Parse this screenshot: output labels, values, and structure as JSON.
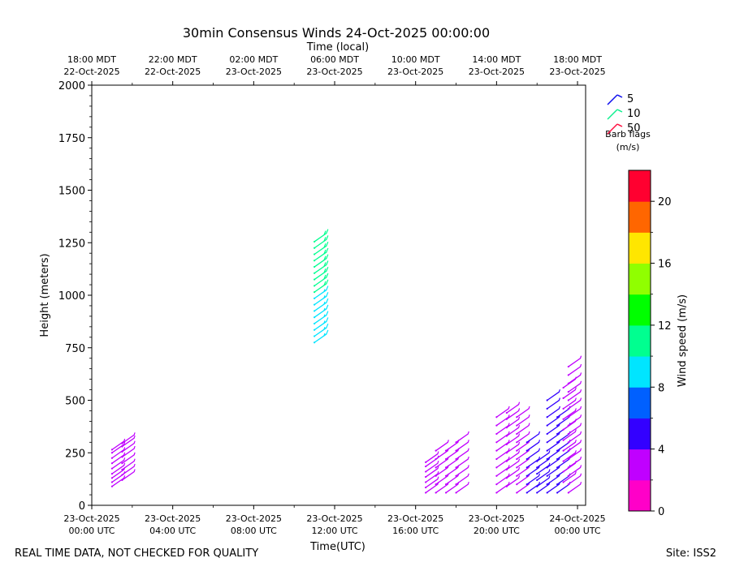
{
  "title": "30min Consensus Winds 24-Oct-2025 00:00:00",
  "footer_left": "REAL TIME DATA, NOT CHECKED FOR QUALITY",
  "footer_right": "Site: ISS2",
  "chart_data": {
    "type": "wind-barb",
    "xlabel": "Time(UTC)",
    "x2label": "Time (local)",
    "ylabel": "Height (meters)",
    "ylim": [
      0,
      2000
    ],
    "yticks": [
      0,
      250,
      500,
      750,
      1000,
      1250,
      1500,
      1750,
      2000
    ],
    "xlim_hours_utc": [
      0,
      24.4
    ],
    "xticks_utc": [
      {
        "h": 0,
        "l1": "23-Oct-2025",
        "l2": "00:00 UTC"
      },
      {
        "h": 4,
        "l1": "23-Oct-2025",
        "l2": "04:00 UTC"
      },
      {
        "h": 8,
        "l1": "23-Oct-2025",
        "l2": "08:00 UTC"
      },
      {
        "h": 12,
        "l1": "23-Oct-2025",
        "l2": "12:00 UTC"
      },
      {
        "h": 16,
        "l1": "23-Oct-2025",
        "l2": "16:00 UTC"
      },
      {
        "h": 20,
        "l1": "23-Oct-2025",
        "l2": "20:00 UTC"
      },
      {
        "h": 24,
        "l1": "24-Oct-2025",
        "l2": "00:00 UTC"
      }
    ],
    "xticks_local": [
      {
        "h": 0,
        "l1": "18:00 MDT",
        "l2": "22-Oct-2025"
      },
      {
        "h": 4,
        "l1": "22:00 MDT",
        "l2": "22-Oct-2025"
      },
      {
        "h": 8,
        "l1": "02:00 MDT",
        "l2": "23-Oct-2025"
      },
      {
        "h": 12,
        "l1": "06:00 MDT",
        "l2": "23-Oct-2025"
      },
      {
        "h": 16,
        "l1": "10:00 MDT",
        "l2": "23-Oct-2025"
      },
      {
        "h": 20,
        "l1": "14:00 MDT",
        "l2": "23-Oct-2025"
      },
      {
        "h": 24,
        "l1": "18:00 MDT",
        "l2": "23-Oct-2025"
      }
    ],
    "legend": {
      "entries": [
        {
          "label": "5"
        },
        {
          "label": "10"
        },
        {
          "label": "50"
        }
      ],
      "title1": "Barb flags",
      "title2": "(m/s)",
      "colors": [
        "#1010ee",
        "#10f090",
        "#ff1040"
      ]
    },
    "colorbar": {
      "label": "Wind speed (m/s)",
      "min": 0,
      "max": 22,
      "ticks": [
        0,
        4,
        8,
        12,
        16,
        20
      ],
      "colors": [
        "#ff00c8",
        "#c000ff",
        "#3300ff",
        "#0060ff",
        "#00e5ff",
        "#00ff90",
        "#00ff00",
        "#90ff00",
        "#ffe600",
        "#ff6600",
        "#ff0030"
      ]
    },
    "columns": [
      {
        "t": 1.0,
        "speed": 3.0,
        "heights": [
          90,
          110,
          130,
          150,
          175,
          200,
          225,
          250,
          265
        ]
      },
      {
        "t": 1.5,
        "speed": 3.0,
        "heights": [
          120,
          145,
          170,
          200,
          230,
          255,
          280,
          295
        ]
      },
      {
        "t": 11.0,
        "speed": 8.6,
        "heights": [
          775,
          805,
          835,
          865,
          895,
          925,
          955,
          985
        ]
      },
      {
        "t": 11.0,
        "speed": 10.5,
        "heights": [
          1015,
          1045,
          1075,
          1105,
          1135,
          1165,
          1195,
          1225,
          1255
        ]
      },
      {
        "t": 16.5,
        "speed": 2.5,
        "heights": [
          60,
          85,
          110,
          135,
          160,
          185,
          205
        ]
      },
      {
        "t": 17.0,
        "speed": 2.5,
        "heights": [
          60,
          100,
          140,
          180,
          220,
          260
        ]
      },
      {
        "t": 17.5,
        "speed": 2.5,
        "heights": [
          60,
          100,
          140,
          180,
          220,
          260
        ]
      },
      {
        "t": 18.0,
        "speed": 2.5,
        "heights": [
          60,
          100,
          140,
          180,
          220,
          260,
          300
        ]
      },
      {
        "t": 20.0,
        "speed": 3.5,
        "heights": [
          60,
          100,
          140,
          180,
          220,
          260,
          300,
          340,
          380,
          420
        ]
      },
      {
        "t": 20.5,
        "speed": 3.5,
        "heights": [
          90,
          130,
          170,
          210,
          250,
          290,
          330,
          370,
          410,
          440
        ]
      },
      {
        "t": 21.0,
        "speed": 3.6,
        "heights": [
          60,
          100,
          140,
          180,
          220,
          260,
          300,
          340,
          380,
          420
        ]
      },
      {
        "t": 21.5,
        "speed": 4.5,
        "heights": [
          60,
          100,
          140,
          180,
          220,
          260,
          300
        ]
      },
      {
        "t": 22.0,
        "speed": 4.5,
        "heights": [
          60,
          90,
          120,
          150,
          180,
          210
        ]
      },
      {
        "t": 22.5,
        "speed": 4.6,
        "heights": [
          60,
          100,
          140,
          180,
          220,
          260,
          300,
          340,
          380,
          420,
          460,
          500
        ]
      },
      {
        "t": 23.0,
        "speed": 4.6,
        "heights": [
          60,
          100,
          140,
          180,
          220,
          260,
          300,
          340,
          380,
          420
        ]
      },
      {
        "t": 23.3,
        "speed": 3.0,
        "heights": [
          110,
          160,
          210,
          260,
          310,
          360,
          410,
          460,
          510,
          560
        ]
      },
      {
        "t": 23.55,
        "speed": 3.0,
        "heights": [
          60,
          100,
          140,
          180,
          220,
          260,
          300,
          340,
          380,
          420,
          460,
          500,
          540,
          580,
          620,
          660
        ]
      }
    ]
  }
}
